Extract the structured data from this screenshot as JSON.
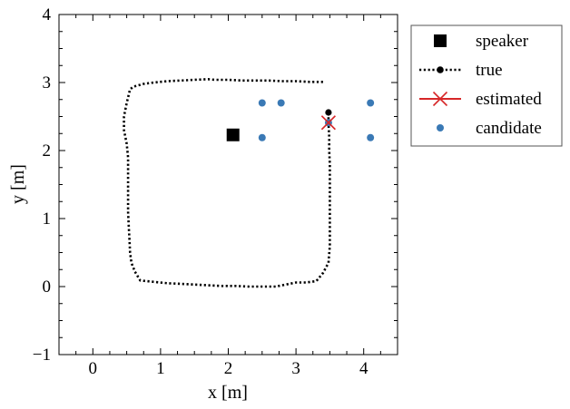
{
  "chart_data": {
    "type": "scatter",
    "xlabel": "x [m]",
    "ylabel": "y [m]",
    "xlim": [
      -0.5,
      4.5
    ],
    "ylim": [
      -1,
      4
    ],
    "xticks": [
      0,
      1,
      2,
      3,
      4
    ],
    "yticks": [
      -1,
      0,
      1,
      2,
      3,
      4
    ],
    "grid": false,
    "legend_position": "outside-right-top",
    "series": [
      {
        "name": "speaker",
        "marker": "square",
        "color": "#000000",
        "points": [
          [
            2.07,
            2.23
          ]
        ]
      },
      {
        "name": "true",
        "style": "dotted-line",
        "color": "#000000",
        "points": [
          [
            3.4,
            3.01
          ],
          [
            3.2,
            3.01
          ],
          [
            3.0,
            3.02
          ],
          [
            2.8,
            3.02
          ],
          [
            2.6,
            3.03
          ],
          [
            2.4,
            3.03
          ],
          [
            2.2,
            3.03
          ],
          [
            2.0,
            3.04
          ],
          [
            1.8,
            3.04
          ],
          [
            1.7,
            3.05
          ],
          [
            1.5,
            3.04
          ],
          [
            1.3,
            3.03
          ],
          [
            1.1,
            3.02
          ],
          [
            0.9,
            3.0
          ],
          [
            0.75,
            2.98
          ],
          [
            0.6,
            2.94
          ],
          [
            0.55,
            2.9
          ],
          [
            0.5,
            2.7
          ],
          [
            0.46,
            2.5
          ],
          [
            0.46,
            2.3
          ],
          [
            0.5,
            2.1
          ],
          [
            0.52,
            1.9
          ],
          [
            0.52,
            1.7
          ],
          [
            0.52,
            1.5
          ],
          [
            0.52,
            1.3
          ],
          [
            0.52,
            1.1
          ],
          [
            0.53,
            0.9
          ],
          [
            0.54,
            0.7
          ],
          [
            0.55,
            0.5
          ],
          [
            0.57,
            0.35
          ],
          [
            0.62,
            0.22
          ],
          [
            0.7,
            0.09
          ],
          [
            0.9,
            0.07
          ],
          [
            1.1,
            0.05
          ],
          [
            1.3,
            0.04
          ],
          [
            1.5,
            0.03
          ],
          [
            1.7,
            0.02
          ],
          [
            1.9,
            0.01
          ],
          [
            2.1,
            0.01
          ],
          [
            2.3,
            0.0
          ],
          [
            2.5,
            0.0
          ],
          [
            2.7,
            0.0
          ],
          [
            2.85,
            0.03
          ],
          [
            3.0,
            0.06
          ],
          [
            3.15,
            0.06
          ],
          [
            3.3,
            0.08
          ],
          [
            3.4,
            0.2
          ],
          [
            3.48,
            0.35
          ],
          [
            3.5,
            0.6
          ],
          [
            3.5,
            0.8
          ],
          [
            3.5,
            1.0
          ],
          [
            3.5,
            1.2
          ],
          [
            3.5,
            1.4
          ],
          [
            3.5,
            1.6
          ],
          [
            3.5,
            1.8
          ],
          [
            3.49,
            2.0
          ],
          [
            3.49,
            2.2
          ],
          [
            3.48,
            2.4
          ],
          [
            3.48,
            2.56
          ]
        ],
        "end_marker": [
          3.48,
          2.56
        ]
      },
      {
        "name": "estimated",
        "marker": "x",
        "color": "#d62728",
        "points": [
          [
            3.48,
            2.41
          ]
        ]
      },
      {
        "name": "candidate",
        "marker": "circle",
        "color": "#3a79b5",
        "points": [
          [
            2.5,
            2.7
          ],
          [
            2.78,
            2.7
          ],
          [
            3.48,
            2.41
          ],
          [
            4.1,
            2.7
          ],
          [
            2.5,
            2.19
          ],
          [
            4.1,
            2.19
          ]
        ]
      }
    ]
  }
}
